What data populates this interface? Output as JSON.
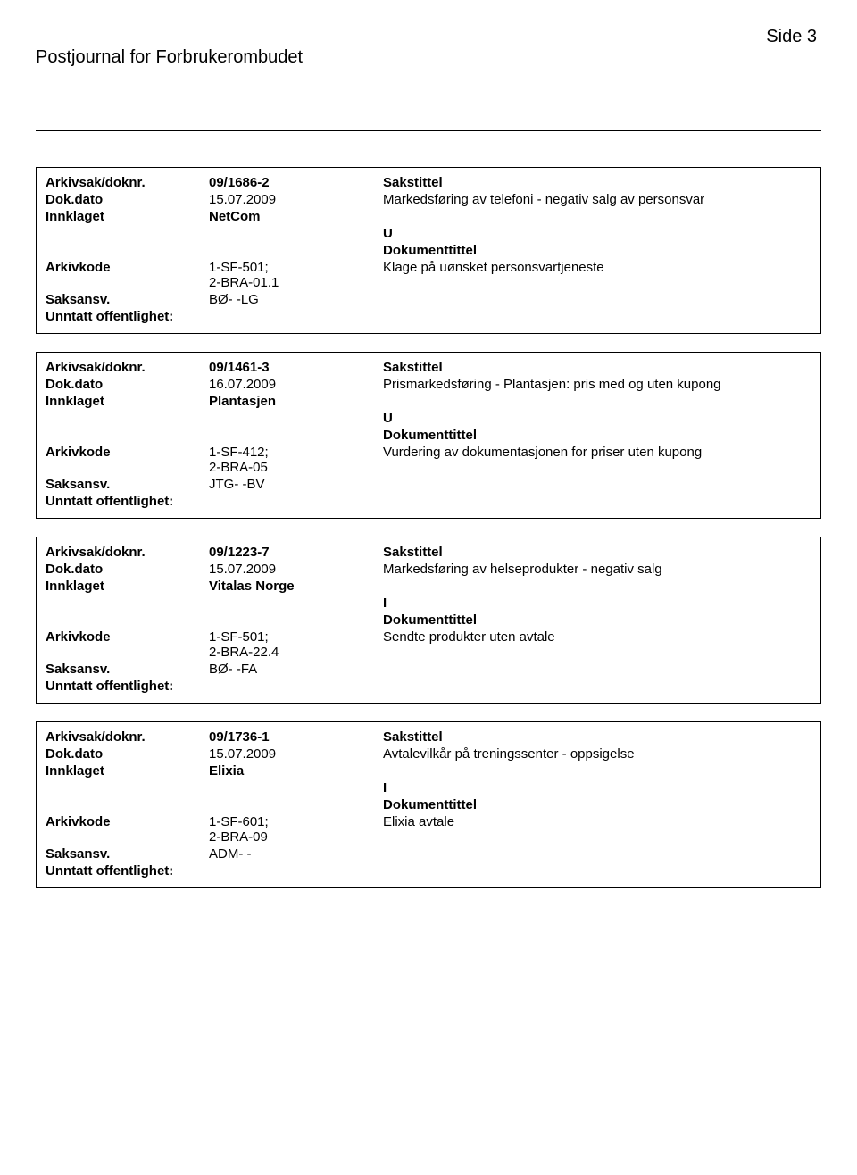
{
  "header": {
    "title": "Postjournal for Forbrukerombudet",
    "page_label": "Side 3"
  },
  "labels": {
    "arkivsak": "Arkivsak/doknr.",
    "dokdato": "Dok.dato",
    "innklaget": "Innklaget",
    "arkivkode": "Arkivkode",
    "saksansv": "Saksansv.",
    "unntatt": "Unntatt offentlighet:",
    "sakstittel": "Sakstittel",
    "dokumenttittel": "Dokumenttittel"
  },
  "records": [
    {
      "arkivsak": "09/1686-2",
      "dokdato": "15.07.2009",
      "sakstittel": "Markedsføring av telefoni - negativ salg av personsvar",
      "innklaget": "NetCom",
      "direction": "U",
      "arkivkode": "1-SF-501;\n2-BRA-01.1",
      "dokumenttittel": "Klage på uønsket personsvartjeneste",
      "saksansv": "BØ- -LG"
    },
    {
      "arkivsak": "09/1461-3",
      "dokdato": "16.07.2009",
      "sakstittel": "Prismarkedsføring - Plantasjen: pris med og uten kupong",
      "innklaget": "Plantasjen",
      "direction": "U",
      "arkivkode": "1-SF-412;\n2-BRA-05",
      "dokumenttittel": "Vurdering av dokumentasjonen for priser uten kupong",
      "saksansv": "JTG- -BV"
    },
    {
      "arkivsak": "09/1223-7",
      "dokdato": "15.07.2009",
      "sakstittel": "Markedsføring av helseprodukter - negativ salg",
      "innklaget": "Vitalas Norge",
      "direction": "I",
      "arkivkode": "1-SF-501;\n2-BRA-22.4",
      "dokumenttittel": "Sendte produkter uten avtale",
      "saksansv": "BØ- -FA"
    },
    {
      "arkivsak": "09/1736-1",
      "dokdato": "15.07.2009",
      "sakstittel": "Avtalevilkår på treningssenter - oppsigelse",
      "innklaget": "Elixia",
      "direction": "I",
      "arkivkode": "1-SF-601;\n2-BRA-09",
      "dokumenttittel": "Elixia avtale",
      "saksansv": "ADM- -"
    }
  ]
}
